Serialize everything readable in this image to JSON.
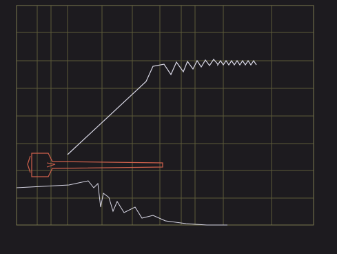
{
  "colors": {
    "background": "#1d1b1f",
    "grid": "#5d5b3a",
    "trace_white": "#d9d8e6",
    "trace_red": "#d0614c"
  },
  "axes": {
    "left_ticks": [
      "",
      "",
      "",
      "",
      "",
      "",
      "",
      ""
    ],
    "right_ticks": [
      "",
      "",
      "",
      "",
      "",
      "",
      "",
      ""
    ],
    "bottom_ticks": [
      "",
      "",
      "",
      "",
      "",
      "",
      "",
      "",
      ""
    ]
  },
  "status": {
    "line1_left": "",
    "line2_left": "",
    "line1_right": "",
    "line2_right": ""
  }
}
